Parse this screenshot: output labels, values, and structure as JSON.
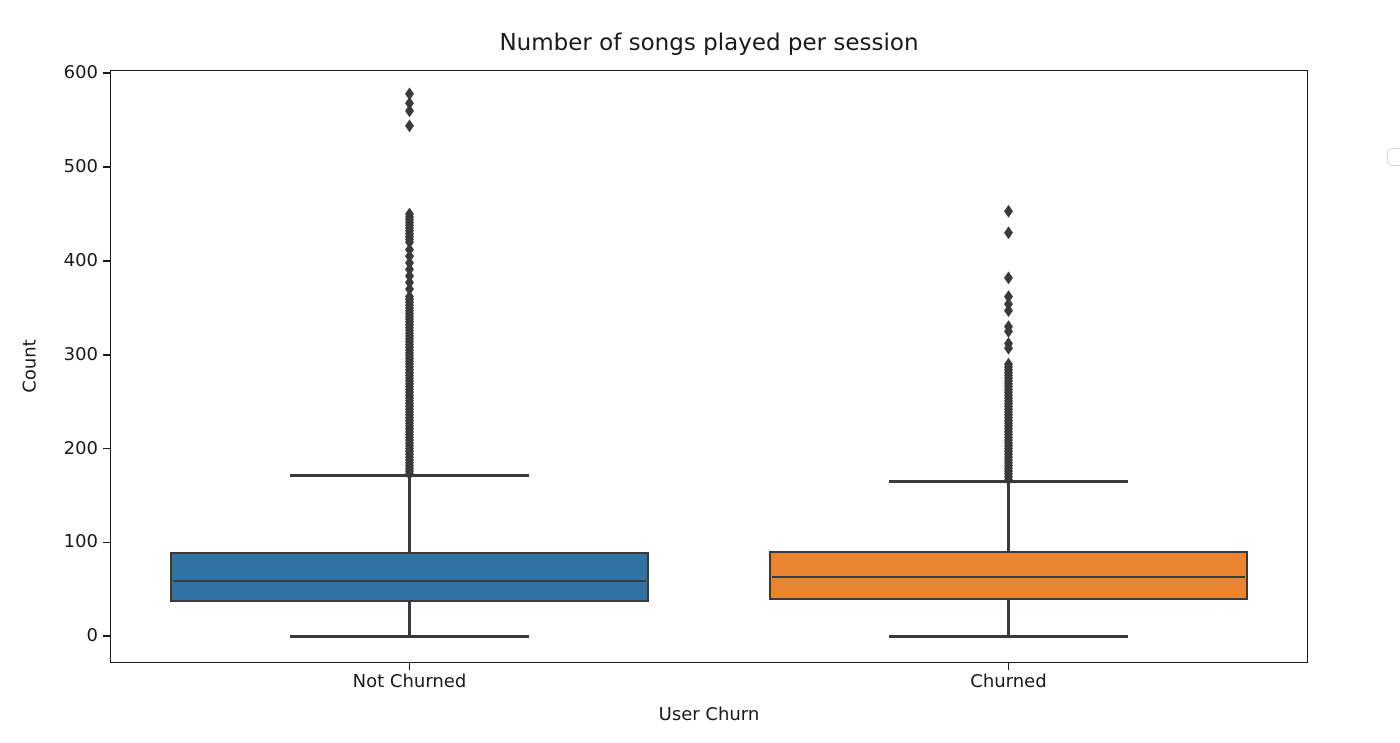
{
  "figure": {
    "background": "#ffffff",
    "legend": {
      "visible": true,
      "entries": []
    }
  },
  "chart_data": {
    "type": "boxplot",
    "title": "Number of songs played per session",
    "xlabel": "User Churn",
    "ylabel": "Count",
    "categories": [
      "Not Churned",
      "Churned"
    ],
    "yticks": [
      0,
      100,
      200,
      300,
      400,
      500,
      600
    ],
    "ylim": [
      -28.5,
      603.5
    ],
    "grid": false,
    "legend_position": "upper right",
    "box_width": 0.8,
    "cap_width": 0.4,
    "edge_color": "#3a3a3a",
    "series": [
      {
        "name": "Not Churned",
        "fill_color": "#2f74a3",
        "whisker_low": 0,
        "q1": 37,
        "median": 59,
        "q3": 90,
        "whisker_high": 171,
        "outliers": [
          578,
          568,
          560,
          544,
          450,
          447,
          444,
          441,
          438,
          435,
          432,
          429,
          426,
          423,
          420,
          412,
          405,
          398,
          391,
          384,
          377,
          370,
          362,
          359,
          356,
          353,
          350,
          347,
          344,
          341,
          338,
          335,
          332,
          329,
          326,
          323,
          320,
          317,
          314,
          311,
          308,
          305,
          302,
          299,
          296,
          293,
          290,
          287,
          284,
          281,
          278,
          275,
          272,
          269,
          266,
          263,
          260,
          257,
          254,
          251,
          248,
          245,
          242,
          239,
          236,
          233,
          230,
          227,
          224,
          221,
          218,
          215,
          212,
          209,
          206,
          203,
          200,
          197,
          194,
          191,
          188,
          185,
          182,
          179,
          176,
          173
        ]
      },
      {
        "name": "Churned",
        "fill_color": "#e8852e",
        "whisker_low": 0,
        "q1": 39,
        "median": 63,
        "q3": 91,
        "whisker_high": 165,
        "outliers": [
          453,
          430,
          382,
          362,
          354,
          347,
          330,
          325,
          312,
          307,
          290,
          287,
          284,
          281,
          278,
          275,
          272,
          269,
          266,
          263,
          260,
          257,
          254,
          251,
          248,
          245,
          242,
          239,
          236,
          233,
          230,
          227,
          224,
          221,
          218,
          215,
          212,
          209,
          206,
          203,
          200,
          197,
          194,
          191,
          188,
          185,
          182,
          179,
          176,
          173,
          170,
          167
        ]
      }
    ]
  }
}
